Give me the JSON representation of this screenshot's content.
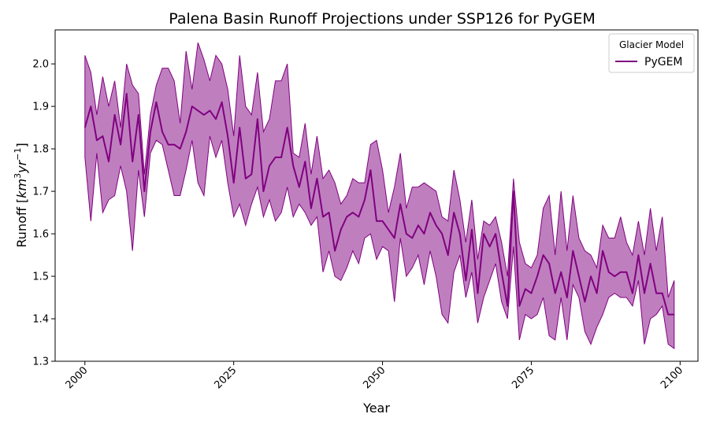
{
  "chart_data": {
    "type": "line",
    "title": "Palena Basin Runoff Projections under SSP126 for PyGEM",
    "xlabel": "Year",
    "ylabel_main": "Runoff [",
    "ylabel_km": "km",
    "ylabel_exp3": "3",
    "ylabel_yr": "yr",
    "ylabel_expneg": "−1",
    "ylabel_close": "]",
    "xlim": [
      1995,
      2103
    ],
    "ylim": [
      1.3,
      2.08
    ],
    "xticks": [
      2000,
      2025,
      2050,
      2075,
      2100
    ],
    "yticks": [
      1.3,
      1.4,
      1.5,
      1.6,
      1.7,
      1.8,
      1.9,
      2.0
    ],
    "xtick_labels": [
      "2000",
      "2025",
      "2050",
      "2075",
      "2100"
    ],
    "ytick_labels": [
      "1.3",
      "1.4",
      "1.5",
      "1.6",
      "1.7",
      "1.8",
      "1.9",
      "2.0"
    ],
    "legend": {
      "title": "Glacier Model",
      "placement": "top-right"
    },
    "series": [
      {
        "name": "PyGEM",
        "color": "#800080",
        "x": [
          2000,
          2001,
          2002,
          2003,
          2004,
          2005,
          2006,
          2007,
          2008,
          2009,
          2010,
          2011,
          2012,
          2013,
          2014,
          2015,
          2016,
          2017,
          2018,
          2019,
          2020,
          2021,
          2022,
          2023,
          2024,
          2025,
          2026,
          2027,
          2028,
          2029,
          2030,
          2031,
          2032,
          2033,
          2034,
          2035,
          2036,
          2037,
          2038,
          2039,
          2040,
          2041,
          2042,
          2043,
          2044,
          2045,
          2046,
          2047,
          2048,
          2049,
          2050,
          2051,
          2052,
          2053,
          2054,
          2055,
          2056,
          2057,
          2058,
          2059,
          2060,
          2061,
          2062,
          2063,
          2064,
          2065,
          2066,
          2067,
          2068,
          2069,
          2070,
          2071,
          2072,
          2073,
          2074,
          2075,
          2076,
          2077,
          2078,
          2079,
          2080,
          2081,
          2082,
          2083,
          2084,
          2085,
          2086,
          2087,
          2088,
          2089,
          2090,
          2091,
          2092,
          2093,
          2094,
          2095,
          2096,
          2097,
          2098,
          2099
        ],
        "values": [
          1.85,
          1.9,
          1.82,
          1.83,
          1.77,
          1.88,
          1.81,
          1.93,
          1.77,
          1.88,
          1.7,
          1.84,
          1.91,
          1.84,
          1.81,
          1.81,
          1.8,
          1.84,
          1.9,
          1.89,
          1.88,
          1.89,
          1.87,
          1.91,
          1.83,
          1.72,
          1.85,
          1.73,
          1.74,
          1.87,
          1.7,
          1.76,
          1.78,
          1.78,
          1.85,
          1.76,
          1.71,
          1.77,
          1.66,
          1.73,
          1.64,
          1.65,
          1.56,
          1.61,
          1.64,
          1.65,
          1.64,
          1.68,
          1.75,
          1.63,
          1.63,
          1.61,
          1.59,
          1.67,
          1.6,
          1.59,
          1.62,
          1.6,
          1.65,
          1.62,
          1.6,
          1.55,
          1.65,
          1.6,
          1.49,
          1.61,
          1.46,
          1.6,
          1.57,
          1.6,
          1.51,
          1.43,
          1.7,
          1.43,
          1.47,
          1.46,
          1.5,
          1.55,
          1.53,
          1.46,
          1.51,
          1.45,
          1.56,
          1.5,
          1.44,
          1.5,
          1.46,
          1.56,
          1.51,
          1.5,
          1.51,
          1.51,
          1.46,
          1.55,
          1.46,
          1.53,
          1.46,
          1.46,
          1.41,
          1.41
        ],
        "upper": [
          2.02,
          1.98,
          1.88,
          1.97,
          1.9,
          1.96,
          1.85,
          2.0,
          1.95,
          1.93,
          1.74,
          1.88,
          1.95,
          1.99,
          1.99,
          1.96,
          1.86,
          2.03,
          1.94,
          2.05,
          2.01,
          1.96,
          2.02,
          2.0,
          1.94,
          1.83,
          2.02,
          1.9,
          1.88,
          1.98,
          1.84,
          1.87,
          1.96,
          1.96,
          2.0,
          1.79,
          1.78,
          1.86,
          1.74,
          1.83,
          1.73,
          1.75,
          1.72,
          1.67,
          1.69,
          1.73,
          1.72,
          1.72,
          1.81,
          1.82,
          1.75,
          1.65,
          1.71,
          1.79,
          1.66,
          1.71,
          1.71,
          1.72,
          1.71,
          1.7,
          1.64,
          1.63,
          1.75,
          1.68,
          1.58,
          1.68,
          1.54,
          1.63,
          1.62,
          1.64,
          1.58,
          1.5,
          1.73,
          1.58,
          1.53,
          1.52,
          1.55,
          1.66,
          1.69,
          1.55,
          1.7,
          1.56,
          1.69,
          1.59,
          1.56,
          1.55,
          1.52,
          1.62,
          1.59,
          1.59,
          1.64,
          1.58,
          1.55,
          1.63,
          1.55,
          1.66,
          1.56,
          1.64,
          1.45,
          1.49
        ],
        "lower": [
          1.78,
          1.63,
          1.79,
          1.65,
          1.68,
          1.69,
          1.76,
          1.7,
          1.56,
          1.75,
          1.64,
          1.79,
          1.82,
          1.81,
          1.75,
          1.69,
          1.69,
          1.75,
          1.82,
          1.72,
          1.69,
          1.83,
          1.78,
          1.82,
          1.72,
          1.64,
          1.67,
          1.62,
          1.67,
          1.71,
          1.64,
          1.68,
          1.63,
          1.65,
          1.71,
          1.64,
          1.67,
          1.65,
          1.62,
          1.64,
          1.51,
          1.56,
          1.5,
          1.49,
          1.52,
          1.56,
          1.53,
          1.59,
          1.6,
          1.54,
          1.57,
          1.56,
          1.44,
          1.59,
          1.5,
          1.52,
          1.55,
          1.48,
          1.56,
          1.5,
          1.41,
          1.39,
          1.51,
          1.55,
          1.45,
          1.51,
          1.39,
          1.45,
          1.49,
          1.53,
          1.44,
          1.4,
          1.57,
          1.35,
          1.41,
          1.4,
          1.41,
          1.45,
          1.36,
          1.35,
          1.45,
          1.35,
          1.48,
          1.45,
          1.37,
          1.34,
          1.38,
          1.41,
          1.45,
          1.46,
          1.45,
          1.45,
          1.43,
          1.49,
          1.34,
          1.4,
          1.41,
          1.43,
          1.34,
          1.33
        ]
      }
    ]
  }
}
